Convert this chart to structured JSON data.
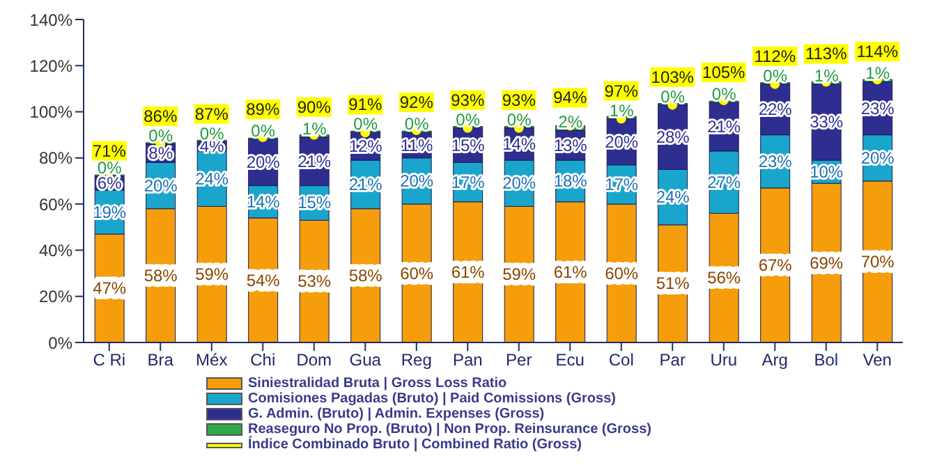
{
  "chart_data": {
    "type": "bar",
    "stacked": true,
    "categories": [
      "C Ri",
      "Bra",
      "Méx",
      "Chi",
      "Dom",
      "Gua",
      "Reg",
      "Pan",
      "Per",
      "Ecu",
      "Col",
      "Par",
      "Uru",
      "Arg",
      "Bol",
      "Ven"
    ],
    "series": [
      {
        "name": "Siniestralidad Bruta | Gross Loss Ratio",
        "color": "#f59d0a",
        "values": [
          47,
          58,
          59,
          54,
          53,
          58,
          60,
          61,
          59,
          61,
          60,
          51,
          56,
          67,
          69,
          70
        ],
        "value_labels": [
          "47%",
          "58%",
          "59%",
          "54%",
          "53%",
          "58%",
          "60%",
          "61%",
          "59%",
          "61%",
          "60%",
          "51%",
          "56%",
          "67%",
          "69%",
          "70%"
        ]
      },
      {
        "name": "Comisiones Pagadas (Bruto) | Paid Comissions (Gross)",
        "color": "#1aa6cc",
        "values": [
          19,
          20,
          24,
          14,
          15,
          21,
          20,
          17,
          20,
          18,
          17,
          24,
          27,
          23,
          10,
          20
        ],
        "value_labels": [
          "19%",
          "20%",
          "24%",
          "14%",
          "15%",
          "21%",
          "20%",
          "17%",
          "20%",
          "18%",
          "17%",
          "24%",
          "27%",
          "23%",
          "10%",
          "20%"
        ]
      },
      {
        "name": "G. Admin. (Bruto) | Admin. Expenses (Gross)",
        "color": "#2e2e91",
        "values": [
          6,
          8,
          4,
          20,
          21,
          12,
          11,
          15,
          14,
          13,
          20,
          28,
          21,
          22,
          33,
          23
        ],
        "value_labels": [
          "6%",
          "8%",
          "4%",
          "20%",
          "21%",
          "12%",
          "11%",
          "15%",
          "14%",
          "13%",
          "20%",
          "28%",
          "21%",
          "22%",
          "33%",
          "23%"
        ]
      },
      {
        "name": "Reaseguro No Prop. (Bruto) | Non Prop. Reinsurance (Gross)",
        "color": "#2eaa4a",
        "values": [
          0,
          0,
          0,
          0,
          1,
          0,
          0,
          0,
          0,
          2,
          1,
          0,
          0,
          0,
          1,
          1
        ],
        "value_labels": [
          "0%",
          "0%",
          "0%",
          "0%",
          "1%",
          "0%",
          "0%",
          "0%",
          "0%",
          "2%",
          "1%",
          "0%",
          "0%",
          "0%",
          "1%",
          "1%"
        ]
      },
      {
        "name": "Índice Combinado Bruto | Combined Ratio (Gross)",
        "type": "scatter",
        "color": "#ffff00",
        "x": [
          "C Ri",
          "Bra",
          "Méx",
          "Chi",
          "Dom",
          "Gua",
          "Reg",
          "Pan",
          "Per",
          "Ecu",
          "Col",
          "Par",
          "Uru",
          "Arg",
          "Bol",
          "Ven"
        ],
        "values": [
          71,
          86,
          87,
          89,
          90,
          91,
          92,
          93,
          93,
          94,
          97,
          103,
          105,
          112,
          113,
          114
        ],
        "value_labels": [
          "71%",
          "86%",
          "87%",
          "89%",
          "90%",
          "91%",
          "92%",
          "93%",
          "93%",
          "94%",
          "97%",
          "103%",
          "105%",
          "112%",
          "113%",
          "114%"
        ]
      }
    ],
    "ylim": [
      0,
      140
    ],
    "yticks": [
      {
        "value": 0,
        "label": "0%"
      },
      {
        "value": 20,
        "label": "20%"
      },
      {
        "value": 40,
        "label": "40%"
      },
      {
        "value": 60,
        "label": "60%"
      },
      {
        "value": 80,
        "label": "80%"
      },
      {
        "value": 100,
        "label": "100%"
      },
      {
        "value": 120,
        "label": "120%"
      },
      {
        "value": 140,
        "label": "140%"
      }
    ],
    "grid": false,
    "legend": "bottom left",
    "marker": "circle"
  }
}
